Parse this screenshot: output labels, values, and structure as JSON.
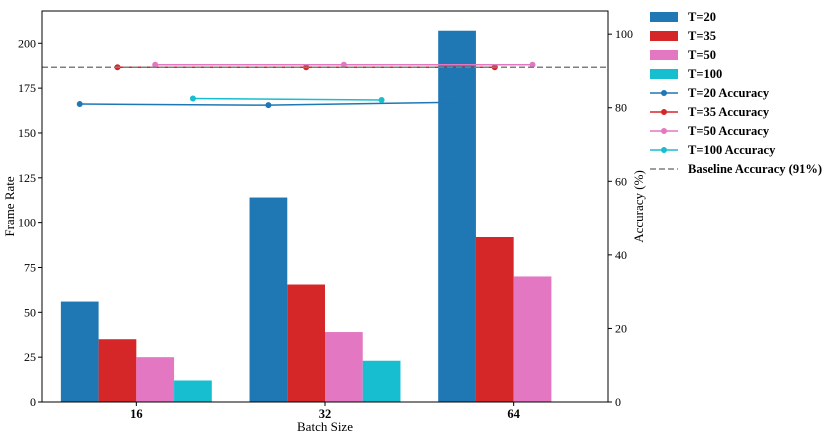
{
  "chart_data": {
    "type": "bar",
    "categories": [
      "16",
      "32",
      "64"
    ],
    "xlabel": "Batch Size",
    "ylabel": "Frame Rate",
    "ylabel_right": "Accuracy (%)",
    "ylim": [
      0,
      218
    ],
    "ylim_right": [
      0,
      106.3
    ],
    "yticks": [
      0,
      25,
      50,
      75,
      100,
      125,
      150,
      175,
      200
    ],
    "yticks_right": [
      0,
      20,
      40,
      60,
      80,
      100
    ],
    "grid": false,
    "legend_position": "outside-right",
    "bar_series": [
      {
        "name": "T=20",
        "color": "#1f77b4",
        "values": [
          56,
          114,
          207
        ]
      },
      {
        "name": "T=35",
        "color": "#d62728",
        "values": [
          35,
          65.5,
          92
        ]
      },
      {
        "name": "T=50",
        "color": "#e377c2",
        "values": [
          25,
          39,
          70
        ]
      },
      {
        "name": "T=100",
        "color": "#17becf",
        "values": [
          12,
          23,
          null
        ]
      }
    ],
    "line_series": [
      {
        "name": "T=20 Accuracy",
        "color": "#1f77b4",
        "x": [
          "16",
          "32",
          "64"
        ],
        "values": [
          81,
          80.7,
          81.5
        ]
      },
      {
        "name": "T=35 Accuracy",
        "color": "#d62728",
        "x": [
          "16",
          "32",
          "64"
        ],
        "values": [
          91,
          91,
          91
        ]
      },
      {
        "name": "T=50 Accuracy",
        "color": "#e377c2",
        "x": [
          "16",
          "32",
          "64"
        ],
        "values": [
          91.7,
          91.7,
          91.7
        ]
      },
      {
        "name": "T=100 Accuracy",
        "color": "#17becf",
        "x": [
          "16",
          "32"
        ],
        "values": [
          82.5,
          82.1
        ]
      }
    ],
    "baseline": {
      "name": "Baseline Accuracy (91%)",
      "value": 91,
      "color": "#7f7f7f"
    }
  }
}
